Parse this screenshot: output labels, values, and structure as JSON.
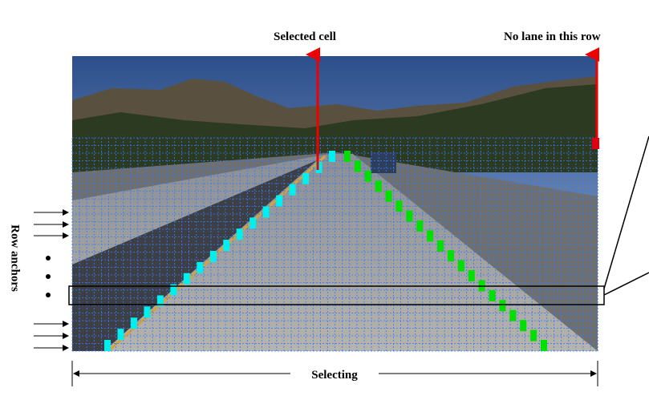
{
  "labels": {
    "selected_cell": "Selected cell",
    "no_lane": "No lane in this row",
    "row_anchors": "Row anchors",
    "selecting": "Selecting"
  }
}
